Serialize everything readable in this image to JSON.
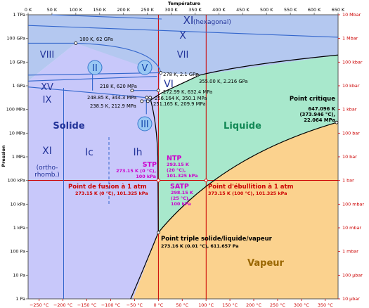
{
  "axes": {
    "top_title": "Température",
    "left_title": "Pression",
    "top_ticks": [
      "0 K",
      "50 K",
      "100 K",
      "150 K",
      "200 K",
      "250 K",
      "300 K",
      "350 K",
      "400 K",
      "450 K",
      "500 K",
      "550 K",
      "600 K",
      "650 K"
    ],
    "bottom_ticks": [
      "−250 °C",
      "−200 °C",
      "−150 °C",
      "−100 °C",
      "−50 °C",
      "0 °C",
      "50 °C",
      "100 °C",
      "150 °C",
      "200 °C",
      "250 °C",
      "300 °C",
      "350 °C"
    ],
    "left_ticks": [
      "1 TPa",
      "100 GPa",
      "10 GPa",
      "1 GPa",
      "100 MPa",
      "10 MPa",
      "1 MPa",
      "100 kPa",
      "10 kPa",
      "1 kPa",
      "100 Pa",
      "10 Pa",
      "1 Pa"
    ],
    "right_ticks": [
      "10 Mbar",
      "1 Mbar",
      "100 kbar",
      "10 kbar",
      "1 kbar",
      "100 bar",
      "10 bar",
      "1 bar",
      "100 mbar",
      "10 mbar",
      "1 mbar",
      "100 µbar",
      "10 µbar"
    ]
  },
  "colors": {
    "solid": "#c8c8fa",
    "solid_high": "#b4c8f0",
    "liquid": "#a8e8cc",
    "vapour": "#fbd28e",
    "blue_line": "#3366cc",
    "red_line": "#cc0000",
    "magenta": "#cc00cc"
  },
  "regions": {
    "xi_hex": "XI",
    "xi_hex_sub": "(hexagonal)",
    "x": "X",
    "viii": "VIII",
    "vii": "VII",
    "ii": "II",
    "v": "V",
    "vi": "VI",
    "xv": "XV",
    "ix": "IX",
    "iii": "III",
    "solide": "Solide",
    "liquide": "Liquide",
    "vapeur": "Vapeur",
    "xi": "XI",
    "xi_sub1": "(ortho-",
    "xi_sub2": "rhomb.)",
    "ic": "Ic",
    "ih": "Ih"
  },
  "points": {
    "p100k": "100 K, 62 GPa",
    "p278": "278 K, 2.1 GPa",
    "p355": "355.00 K, 2.216 GPa",
    "p218": "218 K, 620 MPa",
    "p27299": "272.99 K, 632.4 MPa",
    "p24885": "248.85 K, 344.3 MPa",
    "p256": "256.164 K, 350.1 MPa",
    "p2385": "238.5 K, 212.9 MPa",
    "p251": "251.165 K, 209.9 MPa",
    "critical_title": "Point critique",
    "critical_1": "647.096 K",
    "critical_2": "(373.946 °C),",
    "critical_3": "22.064 MPa",
    "stp": "STP",
    "stp_1": "273.15 K (0 °C),",
    "stp_2": "100 kPa",
    "ntp": "NTP",
    "ntp_1": "293.15 K",
    "ntp_2": "(20 °C),",
    "ntp_3": "101.325 kPa",
    "satp": "SATP",
    "satp_1": "298.15 K",
    "satp_2": "(25 °C),",
    "satp_3": "100 kPa",
    "fusion_title": "Point de fusion à 1 atm",
    "fusion_sub": "273.15 K (0 °C), 101.325 kPa",
    "boil_title": "Point d'ébullition à 1 atm",
    "boil_sub": "373.15 K (100 °C), 101.325 kPa",
    "triple_title": "Point triple solide/liquide/vapeur",
    "triple_sub": "273.16 K (0.01 °C), 611.657 Pa"
  }
}
